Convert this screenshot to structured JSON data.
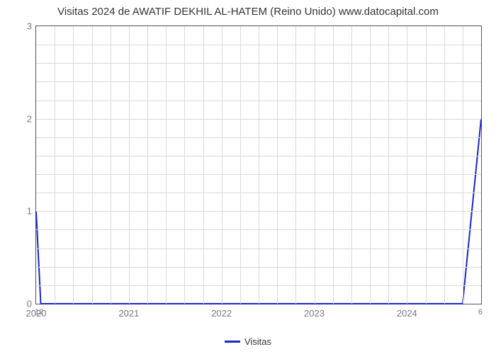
{
  "chart": {
    "type": "line",
    "title": "Visitas 2024 de AWATIF DEKHIL AL-HATEM (Reino Unido) www.datocapital.com",
    "title_fontsize": 15,
    "title_color": "#333333",
    "background_color": "#ffffff",
    "plot_border_color": "#4a5568",
    "grid_color": "#d9d9d9",
    "line_color": "#1927c8",
    "line_width": 2,
    "x": {
      "min": 2020,
      "max": 2024.8,
      "ticks": [
        2020,
        2021,
        2022,
        2023,
        2024
      ],
      "tick_labels": [
        "2020",
        "2021",
        "2022",
        "2023",
        "2024"
      ],
      "minor_gridlines_per_gap": 4,
      "label_fontsize": 13,
      "label_color": "#778"
    },
    "y": {
      "min": 0,
      "max": 3,
      "ticks": [
        0,
        1,
        2,
        3
      ],
      "tick_labels": [
        "0",
        "1",
        "2",
        "3"
      ],
      "minor_gridlines_per_gap": 4,
      "label_fontsize": 13,
      "label_color": "#778"
    },
    "series": [
      {
        "name": "Visitas",
        "color": "#1927c8",
        "points": [
          {
            "x": 2020.0,
            "y": 1.0
          },
          {
            "x": 2020.05,
            "y": 0.0
          },
          {
            "x": 2024.6,
            "y": 0.0
          },
          {
            "x": 2024.8,
            "y": 2.0
          }
        ]
      }
    ],
    "extra_labels": [
      {
        "text": "12",
        "x_side": "left",
        "y_side": "bottom"
      },
      {
        "text": "6",
        "x_side": "right",
        "y_side": "bottom"
      }
    ],
    "legend": {
      "label": "Visitas",
      "swatch_color": "#1927c8",
      "text_color": "#333333",
      "fontsize": 13
    }
  }
}
